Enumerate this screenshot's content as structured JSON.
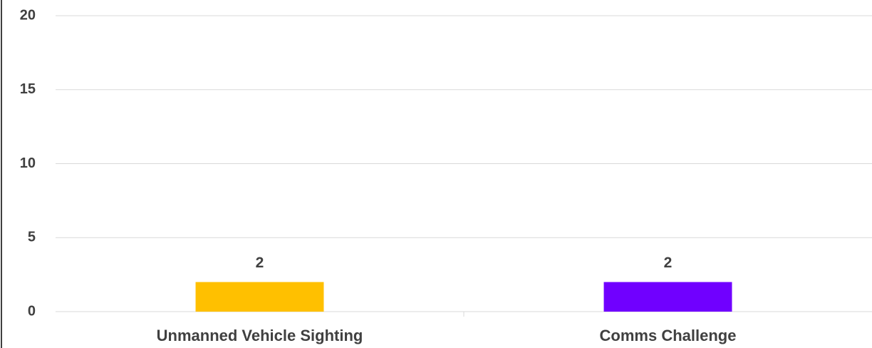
{
  "chart_data": {
    "type": "bar",
    "categories": [
      "Unmanned Vehicle Sighting",
      "Comms Challenge"
    ],
    "values": [
      2,
      2
    ],
    "colors": [
      "#ffc000",
      "#7000ff"
    ],
    "ylim": [
      0,
      20
    ],
    "yticks": [
      0,
      5,
      10,
      15,
      20
    ],
    "grid": true
  }
}
